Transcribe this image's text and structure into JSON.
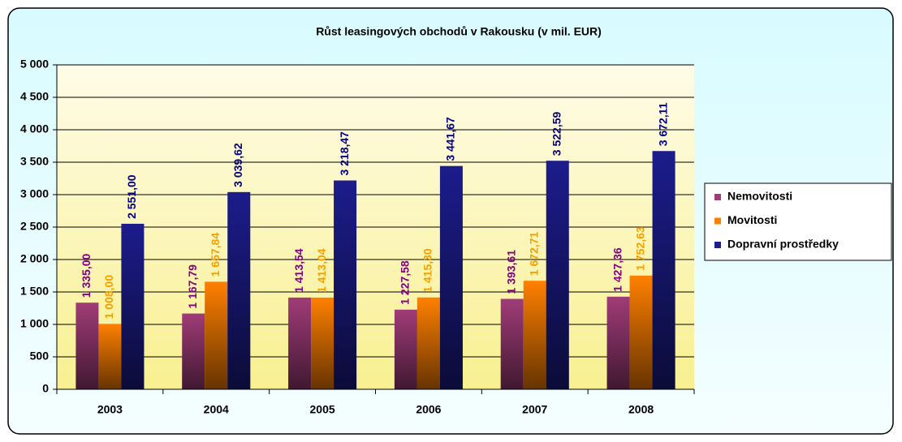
{
  "chart_data": {
    "type": "bar",
    "title": "Růst leasingových obchodů v Rakousku (v mil. EUR)",
    "categories": [
      "2003",
      "2004",
      "2005",
      "2006",
      "2007",
      "2008"
    ],
    "series": [
      {
        "name": "Nemovitosti",
        "color": "#a03c78",
        "label_color": "#800080",
        "values": [
          1335.0,
          1167.79,
          1413.54,
          1227.58,
          1393.61,
          1427.36
        ],
        "value_labels": [
          "1 335,00",
          "1 167,79",
          "1 413,54",
          "1 227,58",
          "1 393,61",
          "1 427,36"
        ]
      },
      {
        "name": "Movitosti",
        "color": "#ff8000",
        "label_color": "#f5a000",
        "values": [
          1008.0,
          1657.84,
          1413.04,
          1415.3,
          1672.71,
          1752.63
        ],
        "value_labels": [
          "1 008,00",
          "1 657,84",
          "1 413,04",
          "1 415,30",
          "1 672,71",
          "1 752,63"
        ]
      },
      {
        "name": "Dopravní prostředky",
        "color": "#1c1c8c",
        "label_color": "#000080",
        "values": [
          2551.0,
          3039.62,
          3218.47,
          3441.67,
          3522.59,
          3672.11
        ],
        "value_labels": [
          "2 551,00",
          "3 039,62",
          "3 218,47",
          "3 441,67",
          "3 522,59",
          "3 672,11"
        ]
      }
    ],
    "ylim": [
      0,
      5000
    ],
    "yticks": [
      0,
      500,
      {
        "value": 1000,
        "label": "1 000"
      },
      {
        "value": 1500,
        "label": "1 500"
      },
      {
        "value": 2000,
        "label": "2 000"
      },
      {
        "value": 2500,
        "label": "2 500"
      },
      {
        "value": 3000,
        "label": "3 000"
      },
      {
        "value": 3500,
        "label": "3 500"
      },
      {
        "value": 4000,
        "label": "4 000"
      },
      {
        "value": 4500,
        "label": "4 500"
      },
      {
        "value": 5000,
        "label": "5 000"
      }
    ],
    "grid": true,
    "legend": "right"
  }
}
